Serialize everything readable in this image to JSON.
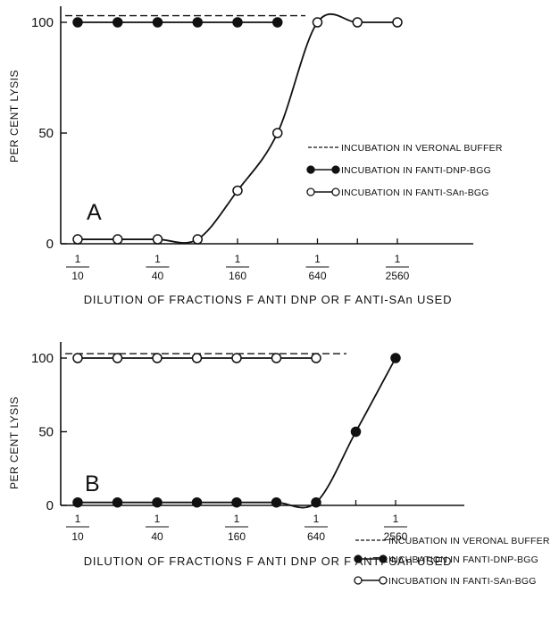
{
  "chart_data": [
    {
      "type": "line",
      "panel_label": "A",
      "ylabel": "PER CENT LYSIS",
      "xlabel": "DILUTION OF FRACTIONS F ANTI DNP OR F ANTI-SAn USED",
      "ylim": [
        0,
        100
      ],
      "yticks": [
        0,
        50,
        100
      ],
      "x_tick_labels": [
        {
          "num": "1",
          "den": "10",
          "pos": 1
        },
        {
          "num": "1",
          "den": "40",
          "pos": 3
        },
        {
          "num": "1",
          "den": "160",
          "pos": 5
        },
        {
          "num": "1",
          "den": "640",
          "pos": 7
        },
        {
          "num": "1",
          "den": "2560",
          "pos": 9
        }
      ],
      "x_dilutions": [
        "1/10",
        "1/20",
        "1/40",
        "1/80",
        "1/160",
        "1/320",
        "1/640",
        "1/1280",
        "1/2560"
      ],
      "legend": [
        {
          "label": "INCUBATION IN VERONAL BUFFER",
          "style": "dashed"
        },
        {
          "label": "INCUBATION IN FANTI-DNP-BGG",
          "style": "filled"
        },
        {
          "label": "INCUBATION IN FANTI-SAn-BGG",
          "style": "open"
        }
      ],
      "series": [
        {
          "style": "dashed",
          "x": [
            1,
            7
          ],
          "y": [
            103,
            103
          ]
        },
        {
          "style": "filled",
          "x": [
            1,
            2,
            3,
            4,
            5,
            6
          ],
          "y": [
            100,
            100,
            100,
            100,
            100,
            100
          ]
        },
        {
          "style": "open",
          "x": [
            1,
            2,
            3,
            4,
            5,
            6,
            7,
            8,
            9
          ],
          "y": [
            2,
            2,
            2,
            2,
            24,
            50,
            100,
            100,
            100
          ]
        }
      ]
    },
    {
      "type": "line",
      "panel_label": "B",
      "ylabel": "PER CENT LYSIS",
      "xlabel": "DILUTION OF FRACTIONS F ANTI DNP OR F ANTI-SAn USED",
      "ylim": [
        0,
        100
      ],
      "yticks": [
        0,
        50,
        100
      ],
      "x_tick_labels": [
        {
          "num": "1",
          "den": "10",
          "pos": 1
        },
        {
          "num": "1",
          "den": "40",
          "pos": 3
        },
        {
          "num": "1",
          "den": "160",
          "pos": 5
        },
        {
          "num": "1",
          "den": "640",
          "pos": 7
        },
        {
          "num": "1",
          "den": "2560",
          "pos": 9
        }
      ],
      "x_dilutions": [
        "1/10",
        "1/20",
        "1/40",
        "1/80",
        "1/160",
        "1/320",
        "1/640",
        "1/1280",
        "1/2560"
      ],
      "legend": [
        {
          "label": "INCUBATION IN VERONAL BUFFER",
          "style": "dashed"
        },
        {
          "label": "INCUBATION IN FANTI-DNP-BGG",
          "style": "filled"
        },
        {
          "label": "INCUBATION IN FANTI-SAn-BGG",
          "style": "open"
        }
      ],
      "series": [
        {
          "style": "dashed",
          "x": [
            1,
            7
          ],
          "y": [
            103,
            103
          ]
        },
        {
          "style": "open",
          "x": [
            1,
            2,
            3,
            4,
            5,
            6,
            7
          ],
          "y": [
            100,
            100,
            100,
            100,
            100,
            100,
            100
          ]
        },
        {
          "style": "filled",
          "x": [
            1,
            2,
            3,
            4,
            5,
            6,
            7,
            8,
            9
          ],
          "y": [
            2,
            2,
            2,
            2,
            2,
            2,
            2,
            50,
            100
          ]
        }
      ]
    }
  ]
}
